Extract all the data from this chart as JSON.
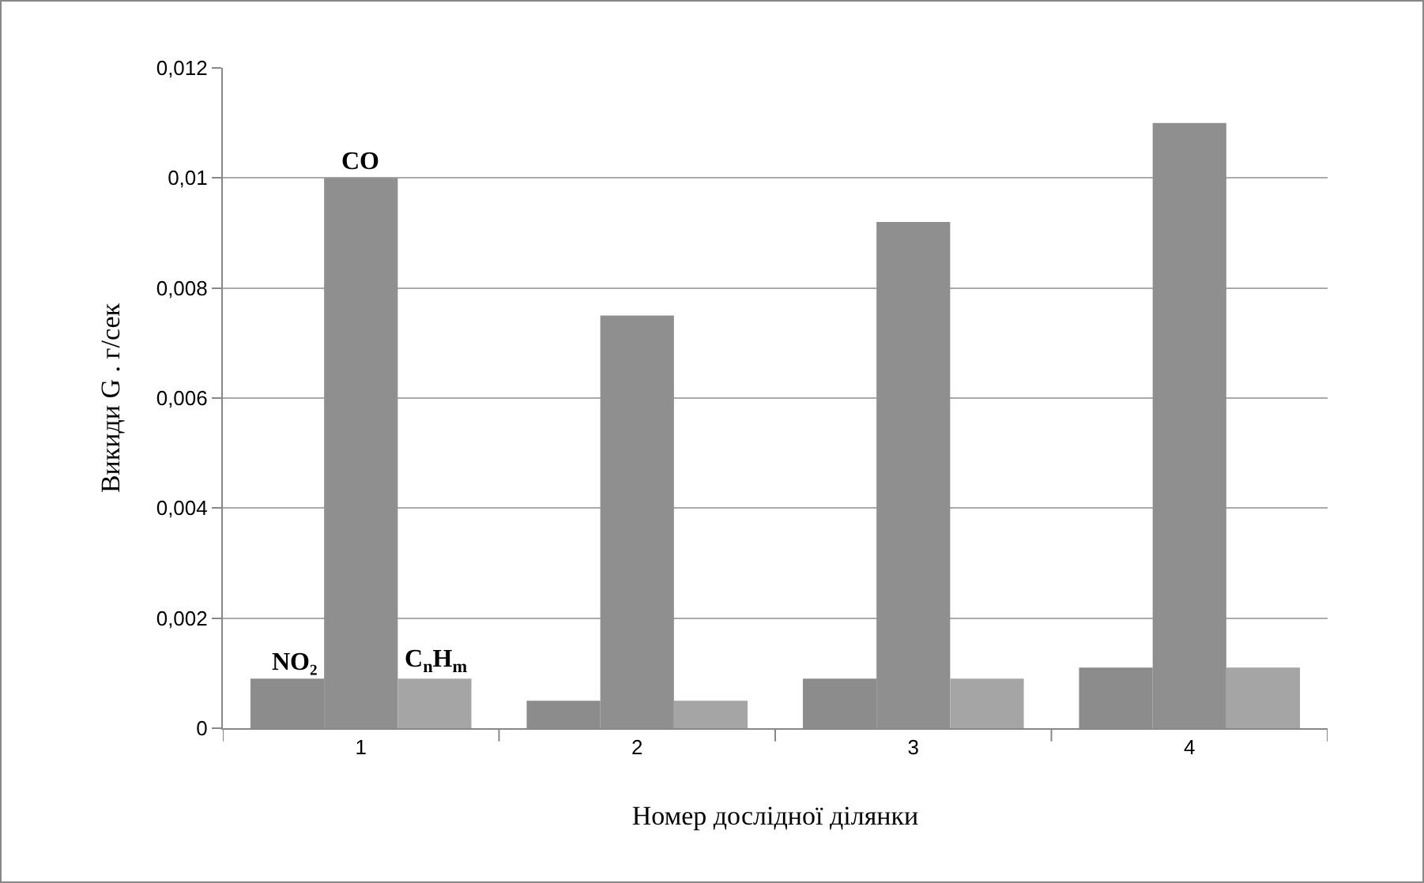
{
  "chart_data": {
    "type": "bar",
    "xlabel": "Номер дослідної ділянки",
    "ylabel": "Викиди G . г/сек",
    "categories": [
      "1",
      "2",
      "3",
      "4"
    ],
    "series": [
      {
        "name": "NO₂",
        "color": "#8c8c8c",
        "values": [
          0.0009,
          0.0005,
          0.0009,
          0.0011
        ]
      },
      {
        "name": "CO",
        "color": "#8f8f8f",
        "values": [
          0.01,
          0.0075,
          0.0092,
          0.011
        ]
      },
      {
        "name": "C$_{n}$H$_{m}$",
        "color": "#a5a5a5",
        "values": [
          0.0009,
          0.0005,
          0.0009,
          0.0011
        ]
      }
    ],
    "ylim": [
      0,
      0.012
    ],
    "yticks": [
      {
        "value": 0,
        "label": "0"
      },
      {
        "value": 0.002,
        "label": "0,002"
      },
      {
        "value": 0.004,
        "label": "0,004"
      },
      {
        "value": 0.006,
        "label": "0,006"
      },
      {
        "value": 0.008,
        "label": "0,008"
      },
      {
        "value": 0.01,
        "label": "0,01"
      },
      {
        "value": 0.012,
        "label": "0,012"
      }
    ],
    "grid": "y",
    "legend": false
  }
}
